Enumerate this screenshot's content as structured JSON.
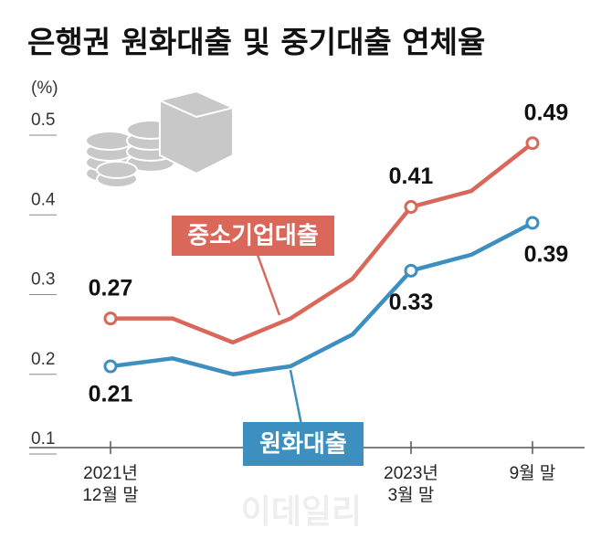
{
  "chart_data": {
    "type": "line",
    "title": "은행권 원화대출 및 중기대출 연체율",
    "y_label": "(%)",
    "watermark": "이데일리",
    "categories": [
      "2021년\n12월 말",
      null,
      null,
      null,
      null,
      "2023년\n3월 말",
      null,
      "9월 말"
    ],
    "series": [
      {
        "name": "중소기업대출",
        "color": "#d9675a",
        "values": [
          0.27,
          0.27,
          0.24,
          0.27,
          0.32,
          0.41,
          0.43,
          0.49
        ],
        "value_labels": [
          "0.27",
          null,
          null,
          null,
          null,
          "0.41",
          null,
          "0.49"
        ]
      },
      {
        "name": "원화대출",
        "color": "#3d8fc0",
        "values": [
          0.21,
          0.22,
          0.2,
          0.21,
          0.25,
          0.33,
          0.35,
          0.39
        ],
        "value_labels": [
          "0.21",
          null,
          null,
          null,
          null,
          "0.33",
          null,
          "0.39"
        ]
      }
    ],
    "ylim": [
      0.1,
      0.5
    ],
    "yticks": [
      0.1,
      0.2,
      0.3,
      0.4,
      0.5
    ]
  }
}
